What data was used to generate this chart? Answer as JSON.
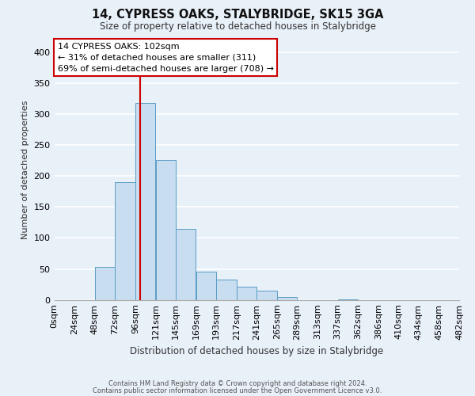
{
  "title": "14, CYPRESS OAKS, STALYBRIDGE, SK15 3GA",
  "subtitle": "Size of property relative to detached houses in Stalybridge",
  "xlabel": "Distribution of detached houses by size in Stalybridge",
  "ylabel": "Number of detached properties",
  "bar_values": [
    0,
    0,
    53,
    190,
    318,
    226,
    114,
    45,
    33,
    21,
    15,
    5,
    0,
    0,
    1,
    0,
    0,
    0,
    0,
    0
  ],
  "bin_edges": [
    0,
    24,
    48,
    72,
    96,
    120,
    144,
    168,
    192,
    216,
    240,
    264,
    288,
    312,
    336,
    360,
    384,
    408,
    432,
    456,
    480
  ],
  "tick_labels": [
    "0sqm",
    "24sqm",
    "48sqm",
    "72sqm",
    "96sqm",
    "121sqm",
    "145sqm",
    "169sqm",
    "193sqm",
    "217sqm",
    "241sqm",
    "265sqm",
    "289sqm",
    "313sqm",
    "337sqm",
    "362sqm",
    "386sqm",
    "410sqm",
    "434sqm",
    "458sqm",
    "482sqm"
  ],
  "bar_color": "#c8ddef",
  "bar_edge_color": "#5b9dc5",
  "property_line_x": 102,
  "property_line_color": "#cc0000",
  "annotation_line1": "14 CYPRESS OAKS: 102sqm",
  "annotation_line2": "← 31% of detached houses are smaller (311)",
  "annotation_line3": "69% of semi-detached houses are larger (708) →",
  "annotation_box_color": "white",
  "annotation_box_edge": "#cc0000",
  "ylim": [
    0,
    420
  ],
  "yticks": [
    0,
    50,
    100,
    150,
    200,
    250,
    300,
    350,
    400
  ],
  "footer_line1": "Contains HM Land Registry data © Crown copyright and database right 2024.",
  "footer_line2": "Contains public sector information licensed under the Open Government Licence v3.0.",
  "background_color": "#e8f0f8",
  "plot_bg_color": "#e8f0f8",
  "grid_color": "#ffffff"
}
